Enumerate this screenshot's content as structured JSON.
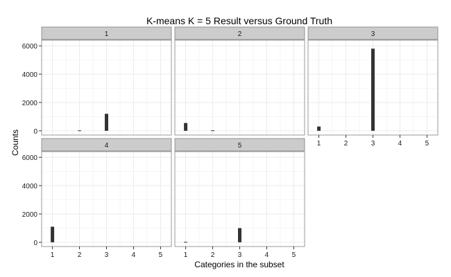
{
  "chart_data": {
    "type": "bar",
    "title": "K-means K = 5 Result versus Ground Truth",
    "xlabel": "Categories in the subset",
    "ylabel": "Counts",
    "xlim": [
      0.6,
      5.4
    ],
    "ylim": [
      -300,
      6400
    ],
    "x_ticks": [
      "1",
      "2",
      "3",
      "4",
      "5"
    ],
    "y_ticks": [
      "0",
      "2000",
      "4000",
      "6000"
    ],
    "grid": true,
    "colors": {
      "bar": "#333333",
      "panel_background": "#ffffff",
      "panel_border": "#7f7f7f",
      "grid_major": "#ebebeb",
      "grid_minor": "#f5f5f5",
      "strip_background": "#cccccc"
    },
    "panels": [
      {
        "label": "1",
        "categories": [
          2,
          3
        ],
        "values": [
          30,
          1200
        ]
      },
      {
        "label": "2",
        "categories": [
          1,
          2
        ],
        "values": [
          550,
          30
        ]
      },
      {
        "label": "3",
        "categories": [
          1,
          3
        ],
        "values": [
          300,
          5800
        ]
      },
      {
        "label": "4",
        "categories": [
          1
        ],
        "values": [
          1100
        ]
      },
      {
        "label": "5",
        "categories": [
          1,
          3
        ],
        "values": [
          30,
          1000
        ]
      }
    ]
  }
}
